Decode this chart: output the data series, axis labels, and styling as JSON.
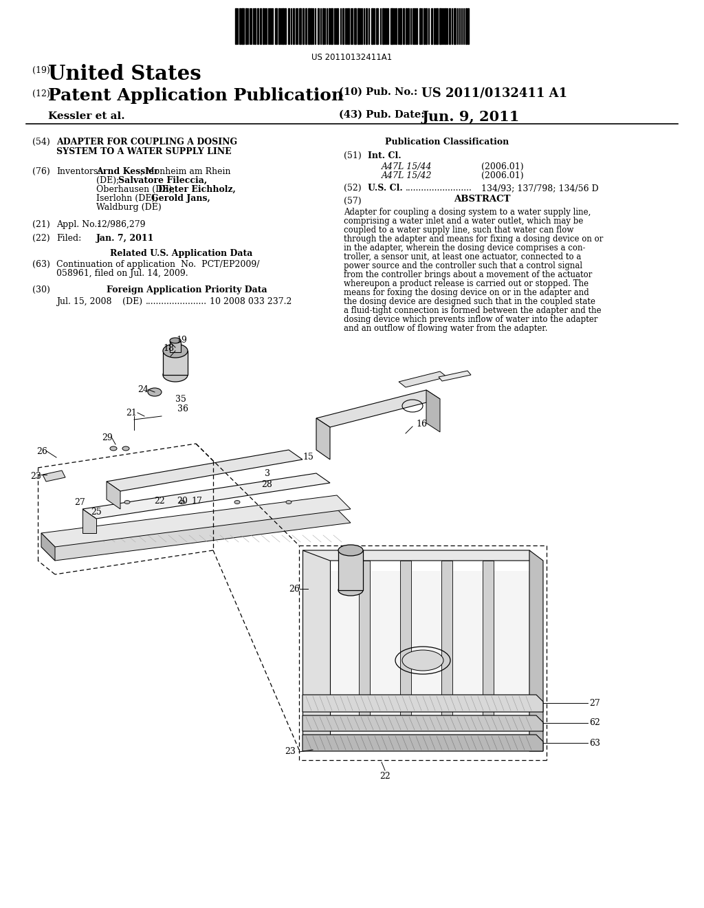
{
  "background_color": "#ffffff",
  "barcode_text": "US 20110132411A1",
  "country": "United States",
  "doc_type": "Patent Application Publication",
  "pub_no_label": "(10) Pub. No.:",
  "pub_no": "US 2011/0132411 A1",
  "pub_date_label": "(43) Pub. Date:",
  "pub_date": "Jun. 9, 2011",
  "applicant": "Kessler et al.",
  "section54_line1": "ADAPTER FOR COUPLING A DOSING",
  "section54_line2": "SYSTEM TO A WATER SUPPLY LINE",
  "section51_class1": "A47L 15/44",
  "section51_class1_year": "(2006.01)",
  "section51_class2": "A47L 15/42",
  "section51_class2_year": "(2006.01)",
  "section52_val": "134/93; 137/798; 134/56 D",
  "abstract_lines": [
    "Adapter for coupling a dosing system to a water supply line,",
    "comprising a water inlet and a water outlet, which may be",
    "coupled to a water supply line, such that water can flow",
    "through the adapter and means for fixing a dosing device on or",
    "in the adapter, wherein the dosing device comprises a con-",
    "troller, a sensor unit, at least one actuator, connected to a",
    "power source and the controller such that a control signal",
    "from the controller brings about a movement of the actuator",
    "whereupon a product release is carried out or stopped. The",
    "means for foxing the dosing device on or in the adapter and",
    "the dosing device are designed such that in the coupled state",
    "a fluid-tight connection is formed between the adapter and the",
    "dosing device which prevents inflow of water into the adapter",
    "and an outflow of flowing water from the adapter."
  ]
}
